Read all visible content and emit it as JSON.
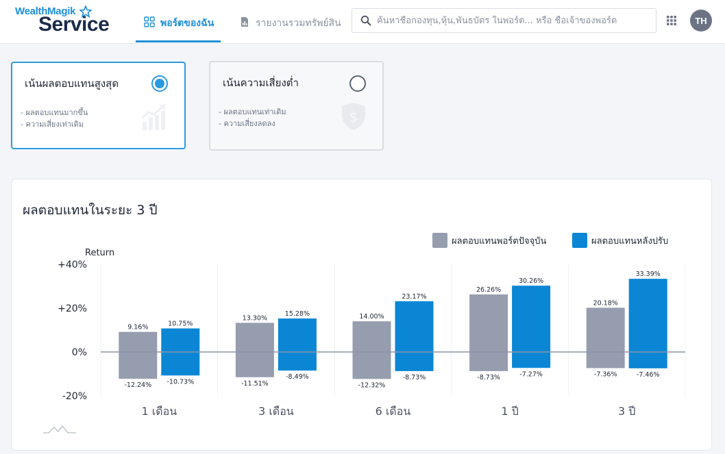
{
  "header": {
    "logo_top": "WealthMagik",
    "logo_bottom": "Service",
    "tabs": [
      {
        "label": "พอร์ตของฉัน",
        "icon": "grid-icon",
        "active": true
      },
      {
        "label": "รายงานรวมทรัพย์สิน",
        "icon": "report-icon",
        "active": false
      }
    ],
    "search": {
      "placeholder": "ค้นหาชื่อกองทุน,หุ้น,พันธบัตร ในพอร์ต... หรือ ชื่อเจ้าของพอร์ต",
      "value": ""
    },
    "avatar_initials": "TH",
    "colors": {
      "accent": "#1e8fd6",
      "brand_dark": "#1c2b4a"
    }
  },
  "options": [
    {
      "title": "เน้นผลตอบแทนสูงสุด",
      "selected": true,
      "bullets": [
        "- ผลตอบแทนมากขึ้น",
        "- ความเสี่ยงเท่าเดิม"
      ],
      "icon": "growth-chart-icon"
    },
    {
      "title": "เน้นความเสี่ยงต่ำ",
      "selected": false,
      "bullets": [
        "- ผลตอบแทนเท่าเดิม",
        "- ความเสี่ยงลดลง"
      ],
      "icon": "shield-dollar-icon"
    }
  ],
  "panel": {
    "title": "ผลตอบแทนในระยะ 3 ปี"
  },
  "chart_data": {
    "type": "bar",
    "ylabel": "Return",
    "yticks": [
      "+40%",
      "+20%",
      "0%",
      "-20%"
    ],
    "ylim": [
      -20,
      40
    ],
    "categories": [
      "1 เดือน",
      "3 เดือน",
      "6 เดือน",
      "1 ปี",
      "3 ปี"
    ],
    "legend_position": "top-right",
    "grid": "vertical separators between categories",
    "series": [
      {
        "name": "ผลตอบแทนพอร์ตปัจจุบัน",
        "color": "#959dae",
        "high": [
          9.16,
          13.3,
          14.0,
          26.26,
          20.18
        ],
        "low": [
          -12.24,
          -11.51,
          -12.32,
          -8.73,
          -7.36
        ],
        "high_labels": [
          "9.16%",
          "13.30%",
          "14.00%",
          "26.26%",
          "20.18%"
        ],
        "low_labels": [
          "-12.24%",
          "-11.51%",
          "-12.32%",
          "-8.73%",
          "-7.36%"
        ]
      },
      {
        "name": "ผลตอบแทนหลังปรับ",
        "color": "#0a86d4",
        "high": [
          10.75,
          15.28,
          23.17,
          30.26,
          33.39
        ],
        "low": [
          -10.73,
          -8.49,
          -8.73,
          -7.27,
          -7.46
        ],
        "high_labels": [
          "10.75%",
          "15.28%",
          "23.17%",
          "30.26%",
          "33.39%"
        ],
        "low_labels": [
          "-10.73%",
          "-8.49%",
          "-8.73%",
          "-7.27%",
          "-7.46%"
        ]
      }
    ]
  }
}
